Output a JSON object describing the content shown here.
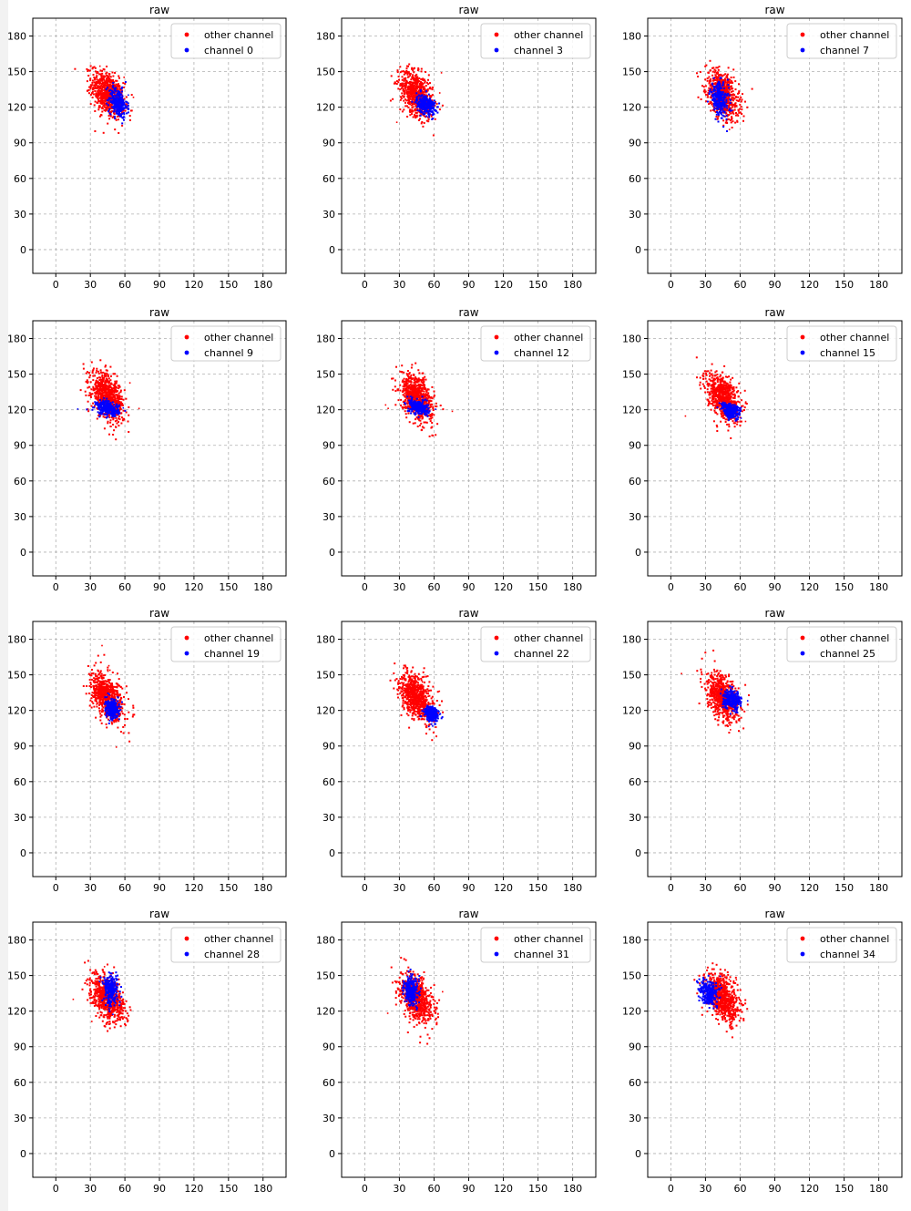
{
  "page": {
    "background": "#ffffff",
    "strip_color": "#f2f2f2"
  },
  "style": {
    "other_color": "#ff0000",
    "channel_color": "#0000ff",
    "grid_color": "#b0b0b0",
    "axis_color": "#000000",
    "legend_border": "#cccccc"
  },
  "chart_data": [
    {
      "type": "scatter",
      "title": "raw",
      "xticks": [
        "0",
        "30",
        "60",
        "90",
        "120",
        "150",
        "180"
      ],
      "yticks": [
        "0",
        "30",
        "60",
        "90",
        "120",
        "150",
        "180"
      ],
      "xlim": [
        -20,
        200
      ],
      "ylim": [
        -20,
        195
      ],
      "grid": true,
      "legend_position": "top-right",
      "series": [
        {
          "name": "other channel",
          "color": "#ff0000",
          "center": [
            45,
            131
          ],
          "spread": [
            7,
            9
          ],
          "tilt": -0.6
        },
        {
          "name": "channel 0",
          "color": "#0000ff",
          "center": [
            54,
            124
          ],
          "spread": [
            4,
            6
          ],
          "tilt": -0.5
        }
      ]
    },
    {
      "type": "scatter",
      "title": "raw",
      "xticks": [
        "0",
        "30",
        "60",
        "90",
        "120",
        "150",
        "180"
      ],
      "yticks": [
        "0",
        "30",
        "60",
        "90",
        "120",
        "150",
        "180"
      ],
      "xlim": [
        -20,
        200
      ],
      "ylim": [
        -20,
        195
      ],
      "grid": true,
      "legend_position": "top-right",
      "series": [
        {
          "name": "other channel",
          "color": "#ff0000",
          "center": [
            45,
            131
          ],
          "spread": [
            7,
            9
          ],
          "tilt": -0.6
        },
        {
          "name": "channel 3",
          "color": "#0000ff",
          "center": [
            53,
            122
          ],
          "spread": [
            4,
            4
          ],
          "tilt": -0.3
        }
      ]
    },
    {
      "type": "scatter",
      "title": "raw",
      "xticks": [
        "0",
        "30",
        "60",
        "90",
        "120",
        "150",
        "180"
      ],
      "yticks": [
        "0",
        "30",
        "60",
        "90",
        "120",
        "150",
        "180"
      ],
      "xlim": [
        -20,
        200
      ],
      "ylim": [
        -20,
        195
      ],
      "grid": true,
      "legend_position": "top-right",
      "series": [
        {
          "name": "other channel",
          "color": "#ff0000",
          "center": [
            45,
            131
          ],
          "spread": [
            7,
            9
          ],
          "tilt": -0.6
        },
        {
          "name": "channel 7",
          "color": "#0000ff",
          "center": [
            42,
            127
          ],
          "spread": [
            4,
            7
          ],
          "tilt": -0.5
        }
      ]
    },
    {
      "type": "scatter",
      "title": "raw",
      "xticks": [
        "0",
        "30",
        "60",
        "90",
        "120",
        "150",
        "180"
      ],
      "yticks": [
        "0",
        "30",
        "60",
        "90",
        "120",
        "150",
        "180"
      ],
      "xlim": [
        -20,
        200
      ],
      "ylim": [
        -20,
        195
      ],
      "grid": true,
      "legend_position": "top-right",
      "series": [
        {
          "name": "other channel",
          "color": "#ff0000",
          "center": [
            45,
            131
          ],
          "spread": [
            7,
            9
          ],
          "tilt": -0.6
        },
        {
          "name": "channel 9",
          "color": "#0000ff",
          "center": [
            45,
            121
          ],
          "spread": [
            5,
            3
          ],
          "tilt": -0.2
        }
      ]
    },
    {
      "type": "scatter",
      "title": "raw",
      "xticks": [
        "0",
        "30",
        "60",
        "90",
        "120",
        "150",
        "180"
      ],
      "yticks": [
        "0",
        "30",
        "60",
        "90",
        "120",
        "150",
        "180"
      ],
      "xlim": [
        -20,
        200
      ],
      "ylim": [
        -20,
        195
      ],
      "grid": true,
      "legend_position": "top-right",
      "series": [
        {
          "name": "other channel",
          "color": "#ff0000",
          "center": [
            45,
            131
          ],
          "spread": [
            7,
            9
          ],
          "tilt": -0.6
        },
        {
          "name": "channel 12",
          "color": "#0000ff",
          "center": [
            47,
            122
          ],
          "spread": [
            4,
            3
          ],
          "tilt": -0.3
        }
      ]
    },
    {
      "type": "scatter",
      "title": "raw",
      "xticks": [
        "0",
        "30",
        "60",
        "90",
        "120",
        "150",
        "180"
      ],
      "yticks": [
        "0",
        "30",
        "60",
        "90",
        "120",
        "150",
        "180"
      ],
      "xlim": [
        -20,
        200
      ],
      "ylim": [
        -20,
        195
      ],
      "grid": true,
      "legend_position": "top-right",
      "series": [
        {
          "name": "other channel",
          "color": "#ff0000",
          "center": [
            45,
            131
          ],
          "spread": [
            7,
            9
          ],
          "tilt": -0.6
        },
        {
          "name": "channel 15",
          "color": "#0000ff",
          "center": [
            52,
            119
          ],
          "spread": [
            4,
            3
          ],
          "tilt": -0.3
        }
      ]
    },
    {
      "type": "scatter",
      "title": "raw",
      "xticks": [
        "0",
        "30",
        "60",
        "90",
        "120",
        "150",
        "180"
      ],
      "yticks": [
        "0",
        "30",
        "60",
        "90",
        "120",
        "150",
        "180"
      ],
      "xlim": [
        -20,
        200
      ],
      "ylim": [
        -20,
        195
      ],
      "grid": true,
      "legend_position": "top-right",
      "series": [
        {
          "name": "other channel",
          "color": "#ff0000",
          "center": [
            45,
            131
          ],
          "spread": [
            7,
            9
          ],
          "tilt": -0.6
        },
        {
          "name": "channel 19",
          "color": "#0000ff",
          "center": [
            49,
            121
          ],
          "spread": [
            3,
            4
          ],
          "tilt": -0.2
        }
      ]
    },
    {
      "type": "scatter",
      "title": "raw",
      "xticks": [
        "0",
        "30",
        "60",
        "90",
        "120",
        "150",
        "180"
      ],
      "yticks": [
        "0",
        "30",
        "60",
        "90",
        "120",
        "150",
        "180"
      ],
      "xlim": [
        -20,
        200
      ],
      "ylim": [
        -20,
        195
      ],
      "grid": true,
      "legend_position": "top-right",
      "series": [
        {
          "name": "other channel",
          "color": "#ff0000",
          "center": [
            45,
            131
          ],
          "spread": [
            7,
            9
          ],
          "tilt": -0.6
        },
        {
          "name": "channel 22",
          "color": "#0000ff",
          "center": [
            58,
            117
          ],
          "spread": [
            3,
            3
          ],
          "tilt": -0.3
        }
      ]
    },
    {
      "type": "scatter",
      "title": "raw",
      "xticks": [
        "0",
        "30",
        "60",
        "90",
        "120",
        "150",
        "180"
      ],
      "yticks": [
        "0",
        "30",
        "60",
        "90",
        "120",
        "150",
        "180"
      ],
      "xlim": [
        -20,
        200
      ],
      "ylim": [
        -20,
        195
      ],
      "grid": true,
      "legend_position": "top-right",
      "series": [
        {
          "name": "other channel",
          "color": "#ff0000",
          "center": [
            45,
            131
          ],
          "spread": [
            7,
            9
          ],
          "tilt": -0.6
        },
        {
          "name": "channel 25",
          "color": "#0000ff",
          "center": [
            53,
            129
          ],
          "spread": [
            4,
            4
          ],
          "tilt": -0.2
        }
      ]
    },
    {
      "type": "scatter",
      "title": "raw",
      "xticks": [
        "0",
        "30",
        "60",
        "90",
        "120",
        "150",
        "180"
      ],
      "yticks": [
        "0",
        "30",
        "60",
        "90",
        "120",
        "150",
        "180"
      ],
      "xlim": [
        -20,
        200
      ],
      "ylim": [
        -20,
        195
      ],
      "grid": true,
      "legend_position": "top-right",
      "series": [
        {
          "name": "other channel",
          "color": "#ff0000",
          "center": [
            45,
            131
          ],
          "spread": [
            7,
            9
          ],
          "tilt": -0.6
        },
        {
          "name": "channel 28",
          "color": "#0000ff",
          "center": [
            48,
            138
          ],
          "spread": [
            3,
            6
          ],
          "tilt": -0.2
        }
      ]
    },
    {
      "type": "scatter",
      "title": "raw",
      "xticks": [
        "0",
        "30",
        "60",
        "90",
        "120",
        "150",
        "180"
      ],
      "yticks": [
        "0",
        "30",
        "60",
        "90",
        "120",
        "150",
        "180"
      ],
      "xlim": [
        -20,
        200
      ],
      "ylim": [
        -20,
        195
      ],
      "grid": true,
      "legend_position": "top-right",
      "series": [
        {
          "name": "other channel",
          "color": "#ff0000",
          "center": [
            45,
            131
          ],
          "spread": [
            7,
            9
          ],
          "tilt": -0.6
        },
        {
          "name": "channel 31",
          "color": "#0000ff",
          "center": [
            40,
            137
          ],
          "spread": [
            3,
            6
          ],
          "tilt": -0.2
        }
      ]
    },
    {
      "type": "scatter",
      "title": "raw",
      "xticks": [
        "0",
        "30",
        "60",
        "90",
        "120",
        "150",
        "180"
      ],
      "yticks": [
        "0",
        "30",
        "60",
        "90",
        "120",
        "150",
        "180"
      ],
      "xlim": [
        -20,
        200
      ],
      "ylim": [
        -20,
        195
      ],
      "grid": true,
      "legend_position": "top-right",
      "series": [
        {
          "name": "other channel",
          "color": "#ff0000",
          "center": [
            45,
            131
          ],
          "spread": [
            7,
            9
          ],
          "tilt": -0.6
        },
        {
          "name": "channel 34",
          "color": "#0000ff",
          "center": [
            33,
            136
          ],
          "spread": [
            4,
            5
          ],
          "tilt": -0.3
        }
      ]
    }
  ]
}
